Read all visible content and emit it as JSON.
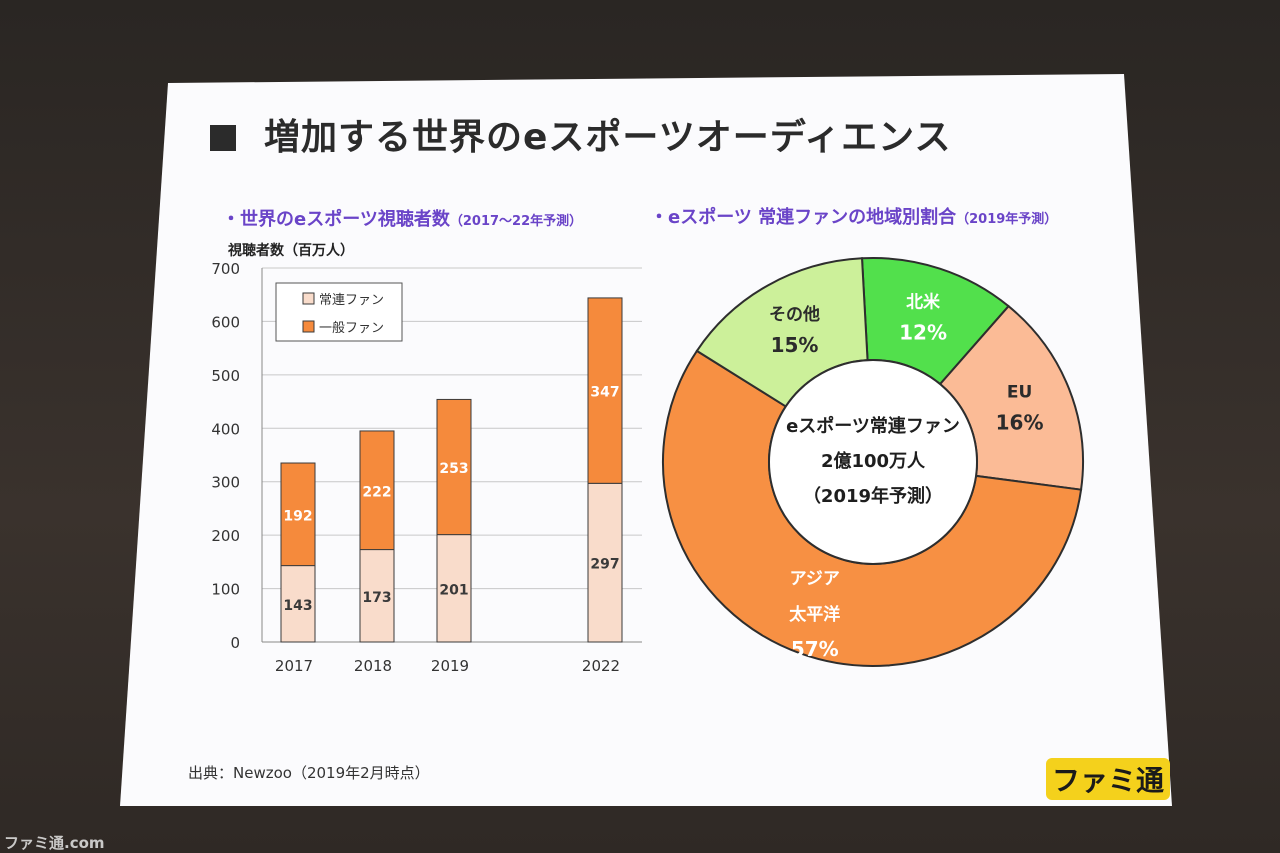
{
  "slide_title": "増加する世界のeスポーツオーディエンス",
  "left_subtitle": "・世界のeスポーツ視聴者数",
  "left_subtitle_note": "（2017〜22年予測）",
  "right_subtitle": "・eスポーツ 常連ファンの地域別割合",
  "right_subtitle_note": "（2019年予測）",
  "y_axis_title": "視聴者数（百万人）",
  "source_text": "出典：Newzoo（2019年2月時点）",
  "logo_text": "ファミ通",
  "watermark": "ファミ通.com",
  "colors": {
    "regular_fan": "#f9dccb",
    "general_fan": "#f58a3c",
    "asia": "#f79043",
    "north_america": "#52e04c",
    "eu": "#fbbb96",
    "other": "#ccf09a",
    "subtitle": "#6a44c8"
  },
  "chart_data": [
    {
      "type": "bar",
      "stacked": true,
      "categories": [
        "2017",
        "2018",
        "2019",
        "2022"
      ],
      "series": [
        {
          "name": "常連ファン",
          "values": [
            143,
            173,
            201,
            297
          ],
          "color": "#f9dccb"
        },
        {
          "name": "一般ファン",
          "values": [
            192,
            222,
            253,
            347
          ],
          "color": "#f58a3c"
        }
      ],
      "ylabel": "視聴者数（百万人）",
      "ylim": [
        0,
        700
      ],
      "yticks": [
        0,
        100,
        200,
        300,
        400,
        500,
        600,
        700
      ],
      "grid": true,
      "legend_position": "top-left"
    },
    {
      "type": "pie",
      "donut": true,
      "center_text": [
        "eスポーツ常連ファン",
        "2億100万人",
        "（2019年予測）"
      ],
      "slices": [
        {
          "label": [
            "北米"
          ],
          "value": 12,
          "value_label": "12%",
          "color": "#52e04c"
        },
        {
          "label": [
            "EU"
          ],
          "value": 16,
          "value_label": "16%",
          "color": "#fbbb96"
        },
        {
          "label": [
            "アジア",
            "太平洋"
          ],
          "value": 57,
          "value_label": "57%",
          "color": "#f79043"
        },
        {
          "label": [
            "その他"
          ],
          "value": 15,
          "value_label": "15%",
          "color": "#ccf09a"
        }
      ]
    }
  ]
}
